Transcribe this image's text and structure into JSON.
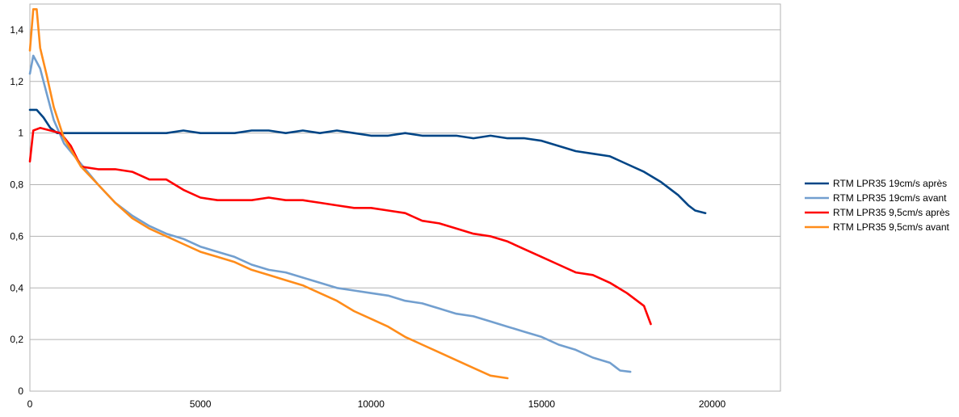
{
  "chart_data": {
    "type": "line",
    "title": "",
    "xlabel": "",
    "ylabel": "",
    "xlim": [
      0,
      22000
    ],
    "ylim": [
      0,
      1.5
    ],
    "x_ticks": [
      0,
      5000,
      10000,
      15000,
      20000
    ],
    "x_tick_labels": [
      "0",
      "5000",
      "10000",
      "15000",
      "20000"
    ],
    "y_ticks": [
      0,
      0.2,
      0.4,
      0.6,
      0.8,
      1,
      1.2,
      1.4
    ],
    "y_tick_labels": [
      "0",
      "0,2",
      "0,4",
      "0,6",
      "0,8",
      "1",
      "1,2",
      "1,4"
    ],
    "grid": "horizontal",
    "legend_position": "right",
    "series": [
      {
        "name": "RTM LPR35 19cm/s après",
        "color": "#004586",
        "x": [
          0,
          200,
          400,
          600,
          800,
          1000,
          1500,
          2000,
          2500,
          3000,
          3500,
          4000,
          4500,
          5000,
          5500,
          6000,
          6500,
          7000,
          7500,
          8000,
          8500,
          9000,
          9500,
          10000,
          10500,
          11000,
          11500,
          12000,
          12500,
          13000,
          13500,
          14000,
          14500,
          15000,
          15500,
          16000,
          16500,
          17000,
          17500,
          18000,
          18500,
          19000,
          19300,
          19500,
          19800
        ],
        "y": [
          1.09,
          1.09,
          1.06,
          1.02,
          1.0,
          1.0,
          1.0,
          1.0,
          1.0,
          1.0,
          1.0,
          1.0,
          1.01,
          1.0,
          1.0,
          1.0,
          1.01,
          1.01,
          1.0,
          1.01,
          1.0,
          1.01,
          1.0,
          0.99,
          0.99,
          1.0,
          0.99,
          0.99,
          0.99,
          0.98,
          0.99,
          0.98,
          0.98,
          0.97,
          0.95,
          0.93,
          0.92,
          0.91,
          0.88,
          0.85,
          0.81,
          0.76,
          0.72,
          0.7,
          0.69
        ]
      },
      {
        "name": "RTM LPR35 19cm/s avant",
        "color": "#729fcf",
        "x": [
          0,
          100,
          300,
          500,
          700,
          1000,
          1500,
          2000,
          2500,
          3000,
          3500,
          4000,
          4500,
          5000,
          5500,
          6000,
          6500,
          7000,
          7500,
          8000,
          8500,
          9000,
          9500,
          10000,
          10500,
          11000,
          11500,
          12000,
          12500,
          13000,
          13500,
          14000,
          14500,
          15000,
          15500,
          16000,
          16500,
          17000,
          17300,
          17600
        ],
        "y": [
          1.23,
          1.3,
          1.25,
          1.15,
          1.05,
          0.96,
          0.88,
          0.8,
          0.73,
          0.68,
          0.64,
          0.61,
          0.59,
          0.56,
          0.54,
          0.52,
          0.49,
          0.47,
          0.46,
          0.44,
          0.42,
          0.4,
          0.39,
          0.38,
          0.37,
          0.35,
          0.34,
          0.32,
          0.3,
          0.29,
          0.27,
          0.25,
          0.23,
          0.21,
          0.18,
          0.16,
          0.13,
          0.11,
          0.08,
          0.075
        ]
      },
      {
        "name": "RTM LPR35 9,5cm/s après",
        "color": "#ff0000",
        "x": [
          0,
          100,
          300,
          600,
          900,
          1200,
          1500,
          2000,
          2500,
          3000,
          3500,
          4000,
          4500,
          5000,
          5500,
          6000,
          6500,
          7000,
          7500,
          8000,
          8500,
          9000,
          9500,
          10000,
          10500,
          11000,
          11500,
          12000,
          12500,
          13000,
          13500,
          14000,
          14500,
          15000,
          15500,
          16000,
          16500,
          17000,
          17500,
          18000,
          18200
        ],
        "y": [
          0.89,
          1.01,
          1.02,
          1.01,
          1.0,
          0.95,
          0.87,
          0.86,
          0.86,
          0.85,
          0.82,
          0.82,
          0.78,
          0.75,
          0.74,
          0.74,
          0.74,
          0.75,
          0.74,
          0.74,
          0.73,
          0.72,
          0.71,
          0.71,
          0.7,
          0.69,
          0.66,
          0.65,
          0.63,
          0.61,
          0.6,
          0.58,
          0.55,
          0.52,
          0.49,
          0.46,
          0.45,
          0.42,
          0.38,
          0.33,
          0.26
        ]
      },
      {
        "name": "RTM LPR35 9,5cm/s avant",
        "color": "#ff8c1a",
        "x": [
          0,
          100,
          200,
          300,
          500,
          700,
          1000,
          1500,
          2000,
          2500,
          3000,
          3500,
          4000,
          4500,
          5000,
          5500,
          6000,
          6500,
          7000,
          7500,
          8000,
          8500,
          9000,
          9500,
          10000,
          10500,
          11000,
          11500,
          12000,
          12500,
          13000,
          13500,
          14000
        ],
        "y": [
          1.32,
          1.48,
          1.48,
          1.33,
          1.22,
          1.1,
          0.98,
          0.87,
          0.8,
          0.73,
          0.67,
          0.63,
          0.6,
          0.57,
          0.54,
          0.52,
          0.5,
          0.47,
          0.45,
          0.43,
          0.41,
          0.38,
          0.35,
          0.31,
          0.28,
          0.25,
          0.21,
          0.18,
          0.15,
          0.12,
          0.09,
          0.06,
          0.05
        ]
      }
    ]
  }
}
